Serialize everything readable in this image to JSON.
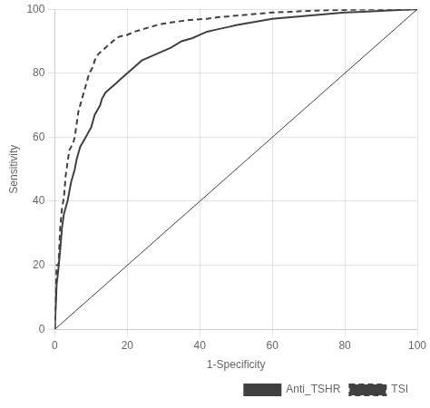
{
  "chart_data": {
    "type": "line",
    "xlabel": "1-Specificity",
    "ylabel": "Sensitivity",
    "xlim": [
      0,
      100
    ],
    "ylim": [
      0,
      100
    ],
    "xticks": [
      0,
      20,
      40,
      60,
      80,
      100
    ],
    "yticks": [
      0,
      20,
      40,
      60,
      80,
      100
    ],
    "grid": true,
    "legend": "lower right",
    "series": [
      {
        "color": "#404040",
        "line_style": "solid",
        "x": [
          0,
          100
        ],
        "values": [
          0,
          100
        ]
      },
      {
        "name": "Anti_TSHR",
        "color": "#404040",
        "line_style": "solid",
        "x": [
          0,
          0.5,
          1.0,
          1.5,
          2.0,
          2.5,
          3.0,
          3.5,
          4.0,
          4.5,
          5.0,
          5.5,
          6.0,
          6.5,
          7.0,
          7.5,
          8.0,
          8.5,
          9.0,
          9.5,
          10.0,
          10.5,
          11.0,
          11.5,
          12.0,
          12.5,
          13.0,
          14.0,
          15.0,
          16.0,
          17.0,
          18.0,
          19.0,
          20.0,
          21.0,
          22.0,
          24.0,
          26.0,
          28.0,
          30.0,
          32.0,
          35.0,
          38.0,
          40.0,
          42.0,
          44.0,
          46.0,
          48.0,
          50.0,
          55.0,
          60.0,
          65.0,
          70.0,
          75.0,
          80.0,
          85.0,
          90.0,
          95.0,
          100.0
        ],
        "values": [
          0,
          14,
          19,
          25,
          32,
          36,
          38,
          40,
          43,
          46,
          48,
          50,
          53,
          55,
          57,
          58,
          59,
          60,
          61,
          62,
          63,
          65,
          67,
          68,
          69,
          70,
          72,
          74,
          75,
          76,
          77,
          78,
          79,
          80,
          81,
          82,
          84,
          85,
          86,
          87,
          88,
          90,
          91,
          92,
          93,
          93.5,
          94,
          94.5,
          95,
          96,
          97,
          97.5,
          98,
          98.5,
          99,
          99.2,
          99.5,
          99.8,
          100
        ]
      },
      {
        "name": "TSI",
        "color": "#404040",
        "line_style": "dashed",
        "x": [
          0,
          0.5,
          1.0,
          1.5,
          2.0,
          2.5,
          3.0,
          3.5,
          4.0,
          4.5,
          5.0,
          5.5,
          6.0,
          6.5,
          7.0,
          7.5,
          8.0,
          8.5,
          9.0,
          9.5,
          10.0,
          10.5,
          11.0,
          12.0,
          13.0,
          14.0,
          15.0,
          16.0,
          17.0,
          18.0,
          20.0,
          22.0,
          25.0,
          28.0,
          30.0,
          33.0,
          36.0,
          39.0,
          42.0,
          45.0,
          50.0,
          55.0,
          60.0,
          65.0,
          70.0,
          75.0,
          80.0,
          85.0,
          90.0,
          95.0,
          100.0
        ],
        "values": [
          0,
          20,
          20,
          32,
          38,
          41,
          48,
          52,
          56,
          57,
          58,
          60,
          64,
          68,
          70,
          72,
          74,
          76,
          78,
          80,
          81,
          82,
          84,
          86,
          87,
          88,
          89,
          90,
          91,
          91.5,
          92,
          93,
          94,
          95,
          95.5,
          96,
          96.5,
          96.8,
          97,
          97.5,
          98,
          98.5,
          99,
          99.2,
          99.5,
          99.7,
          99.8,
          99.9,
          100,
          100,
          100
        ]
      }
    ]
  }
}
